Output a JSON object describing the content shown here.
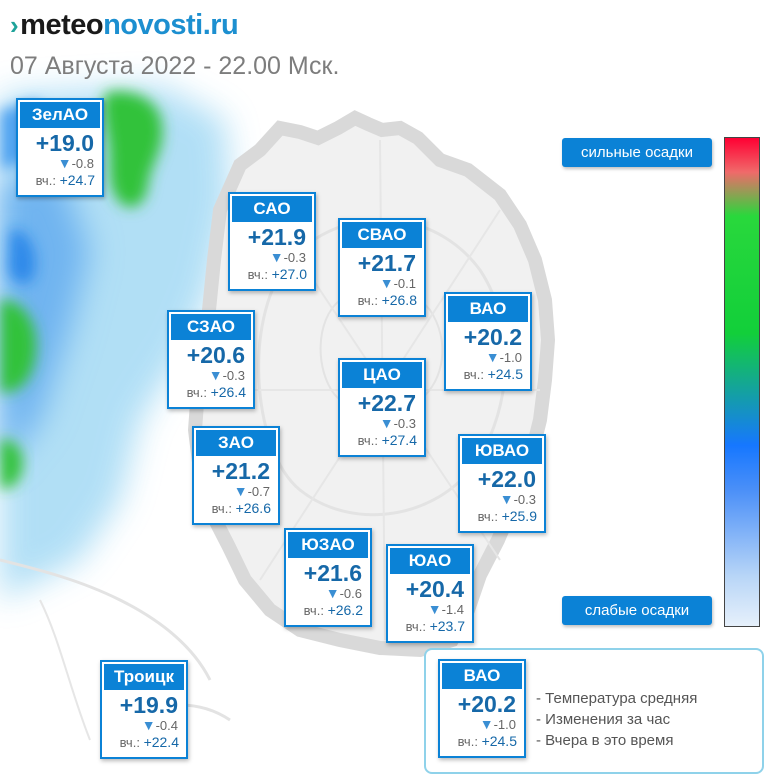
{
  "brand": {
    "part1": "meteo",
    "part2": "novosti.ru"
  },
  "subtitle": "07 Августа 2022 - 22.00 Мск.",
  "scale": {
    "top_label": "сильные осадки",
    "bottom_label": "слабые осадки"
  },
  "yesterday_prefix": "вч.:",
  "districts": [
    {
      "id": "zelao",
      "name": "ЗелАО",
      "temp": "+19.0",
      "change": "-0.8",
      "yesterday": "+24.7"
    },
    {
      "id": "sao",
      "name": "САО",
      "temp": "+21.9",
      "change": "-0.3",
      "yesterday": "+27.0"
    },
    {
      "id": "svao",
      "name": "СВАО",
      "temp": "+21.7",
      "change": "-0.1",
      "yesterday": "+26.8"
    },
    {
      "id": "vao",
      "name": "ВАО",
      "temp": "+20.2",
      "change": "-1.0",
      "yesterday": "+24.5"
    },
    {
      "id": "szao",
      "name": "СЗАО",
      "temp": "+20.6",
      "change": "-0.3",
      "yesterday": "+26.4"
    },
    {
      "id": "cao",
      "name": "ЦАО",
      "temp": "+22.7",
      "change": "-0.3",
      "yesterday": "+27.4"
    },
    {
      "id": "zao",
      "name": "ЗАО",
      "temp": "+21.2",
      "change": "-0.7",
      "yesterday": "+26.6"
    },
    {
      "id": "yuvao",
      "name": "ЮВАО",
      "temp": "+22.0",
      "change": "-0.3",
      "yesterday": "+25.9"
    },
    {
      "id": "yuzao",
      "name": "ЮЗАО",
      "temp": "+21.6",
      "change": "-0.6",
      "yesterday": "+26.2"
    },
    {
      "id": "yuao",
      "name": "ЮАО",
      "temp": "+20.4",
      "change": "-1.4",
      "yesterday": "+23.7"
    },
    {
      "id": "troitsk",
      "name": "Троицк",
      "temp": "+19.9",
      "change": "-0.4",
      "yesterday": "+22.4"
    }
  ],
  "legend": {
    "sample": {
      "name": "ВАО",
      "temp": "+20.2",
      "change": "-1.0",
      "yesterday": "+24.5"
    },
    "items": [
      "- Температура средняя",
      "- Изменения за час",
      "- Вчера в это время"
    ]
  }
}
